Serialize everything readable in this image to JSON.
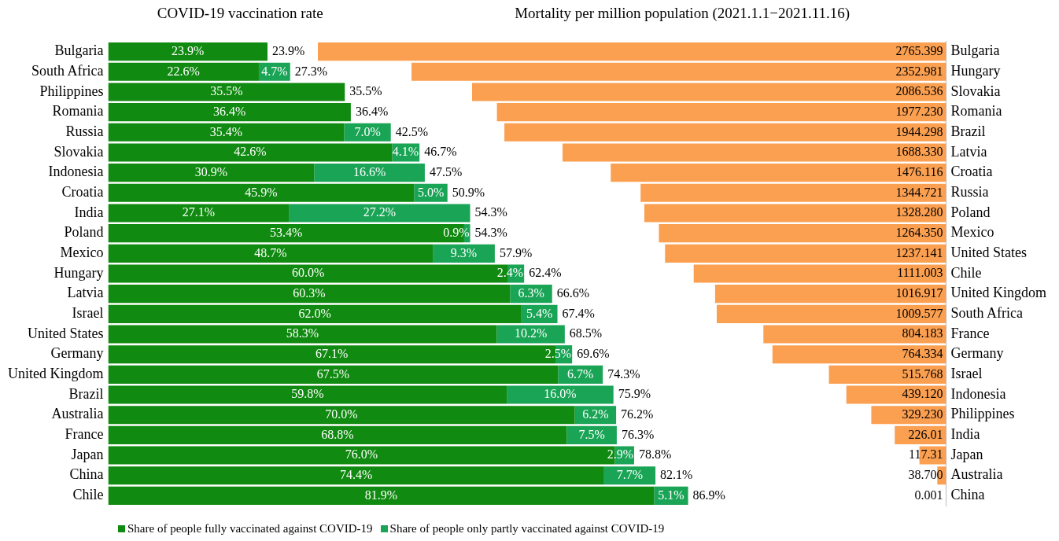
{
  "chart_data": [
    {
      "type": "bar",
      "title": "COVID-19 vaccination rate",
      "orientation": "horizontal",
      "stacked": true,
      "grid": false,
      "legend": "bottom",
      "tick_labels": "y",
      "categories": [
        "Bulgaria",
        "South Africa",
        "Philippines",
        "Romania",
        "Russia",
        "Slovakia",
        "Indonesia",
        "Croatia",
        "India",
        "Poland",
        "Mexico",
        "Hungary",
        "Latvia",
        "Israel",
        "United States",
        "Germany",
        "United Kingdom",
        "Brazil",
        "Australia",
        "France",
        "Japan",
        "China",
        "Chile"
      ],
      "series": [
        {
          "name": "Share of people fully vaccinated against COVID-19",
          "color": "#108a10",
          "values": [
            23.9,
            22.6,
            35.5,
            36.4,
            35.4,
            42.6,
            30.9,
            45.9,
            27.1,
            53.4,
            48.7,
            60.0,
            60.3,
            62.0,
            58.3,
            67.1,
            67.5,
            59.8,
            70.0,
            68.8,
            76.0,
            74.4,
            81.9
          ],
          "value_labels": [
            "23.9%",
            "22.6%",
            "35.5%",
            "36.4%",
            "35.4%",
            "42.6%",
            "30.9%",
            "45.9%",
            "27.1%",
            "53.4%",
            "48.7%",
            "60.0%",
            "60.3%",
            "62.0%",
            "58.3%",
            "67.1%",
            "67.5%",
            "59.8%",
            "70.0%",
            "68.8%",
            "76.0%",
            "74.4%",
            "81.9%"
          ]
        },
        {
          "name": "Share of people only partly vaccinated against COVID-19",
          "color": "#1aa456",
          "values": [
            null,
            4.7,
            null,
            null,
            7.0,
            4.1,
            16.6,
            5.0,
            27.2,
            0.9,
            9.3,
            2.4,
            6.3,
            5.4,
            10.2,
            2.5,
            6.7,
            16.0,
            6.2,
            7.5,
            2.9,
            7.7,
            5.1
          ],
          "value_labels": [
            null,
            "4.7%",
            null,
            null,
            "7.0%",
            "4.1%",
            "16.6%",
            "5.0%",
            "27.2%",
            "0.9%",
            "9.3%",
            "2.4%",
            "6.3%",
            "5.4%",
            "10.2%",
            "2.5%",
            "6.7%",
            "16.0%",
            "6.2%",
            "7.5%",
            "2.9%",
            "7.7%",
            "5.1%"
          ]
        }
      ],
      "totals": [
        "23.9%",
        "27.3%",
        "35.5%",
        "36.4%",
        "42.5%",
        "46.7%",
        "47.5%",
        "50.9%",
        "54.3%",
        "54.3%",
        "57.9%",
        "62.4%",
        "66.6%",
        "67.4%",
        "68.5%",
        "69.6%",
        "74.3%",
        "75.9%",
        "76.2%",
        "76.3%",
        "78.8%",
        "82.1%",
        "86.9%"
      ]
    },
    {
      "type": "bar",
      "title": "Mortality per million population (2021.1.1−2021.11.16)",
      "orientation": "horizontal",
      "grid": false,
      "tick_labels": "y",
      "xlim": [
        2765.399,
        0
      ],
      "color": "#fb9f50",
      "categories": [
        "Bulgaria",
        "Hungary",
        "Slovakia",
        "Romania",
        "Brazil",
        "Latvia",
        "Croatia",
        "Russia",
        "Poland",
        "Mexico",
        "United States",
        "Chile",
        "United Kingdom",
        "South Africa",
        "France",
        "Germany",
        "Israel",
        "Indonesia",
        "Philippines",
        "India",
        "Japan",
        "Australia",
        "China"
      ],
      "values": [
        2765.399,
        2352.981,
        2086.536,
        1977.23,
        1944.298,
        1688.33,
        1476.116,
        1344.721,
        1328.28,
        1264.35,
        1237.141,
        1111.003,
        1016.917,
        1009.577,
        804.183,
        764.334,
        515.768,
        439.12,
        329.23,
        226.01,
        117.31,
        38.7,
        0.001
      ],
      "value_labels": [
        "2765.399",
        "2352.981",
        "2086.536",
        "1977.230",
        "1944.298",
        "1688.330",
        "1476.116",
        "1344.721",
        "1328.280",
        "1264.350",
        "1237.141",
        "1111.003",
        "1016.917",
        "1009.577",
        "804.183",
        "764.334",
        "515.768",
        "439.120",
        "329.230",
        "226.01",
        "117.31",
        "38.700",
        "0.001"
      ]
    }
  ]
}
